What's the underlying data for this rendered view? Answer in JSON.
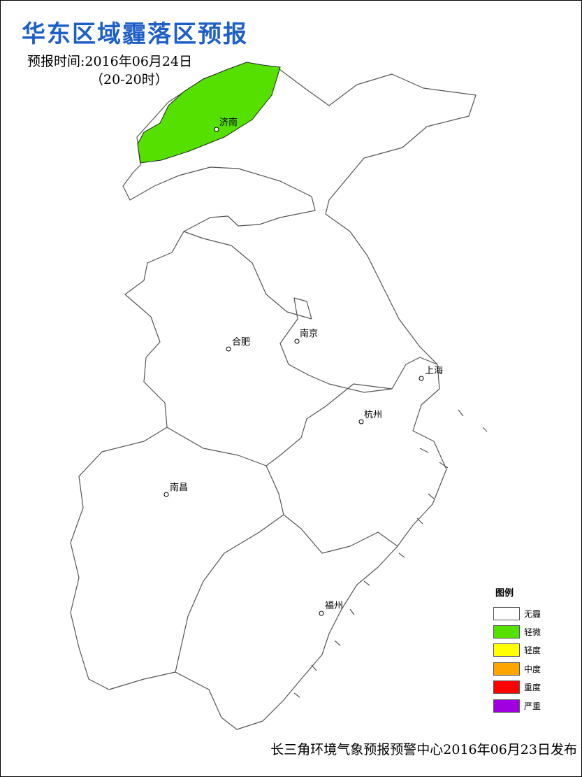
{
  "header": {
    "title": "华东区域霾落区预报",
    "forecast_time": "预报时间:2016年06月24日",
    "forecast_period": "（20-20时）"
  },
  "map": {
    "boundary_color": "#555555",
    "haze_area_color": "#55e000",
    "cities": [
      {
        "name": "济南"
      },
      {
        "name": "合肥"
      },
      {
        "name": "南京"
      },
      {
        "name": "上海"
      },
      {
        "name": "杭州"
      },
      {
        "name": "南昌"
      },
      {
        "name": "福州"
      }
    ]
  },
  "legend": {
    "title": "图例",
    "items": [
      {
        "label": "无霾",
        "color": "#ffffff"
      },
      {
        "label": "轻微",
        "color": "#55e000"
      },
      {
        "label": "轻度",
        "color": "#ffff00"
      },
      {
        "label": "中度",
        "color": "#ffa500"
      },
      {
        "label": "重度",
        "color": "#ff0000"
      },
      {
        "label": "严重",
        "color": "#a000e0"
      }
    ]
  },
  "footer": {
    "publisher": "长三角环境气象预报预警中心2016年06月23日发布"
  }
}
